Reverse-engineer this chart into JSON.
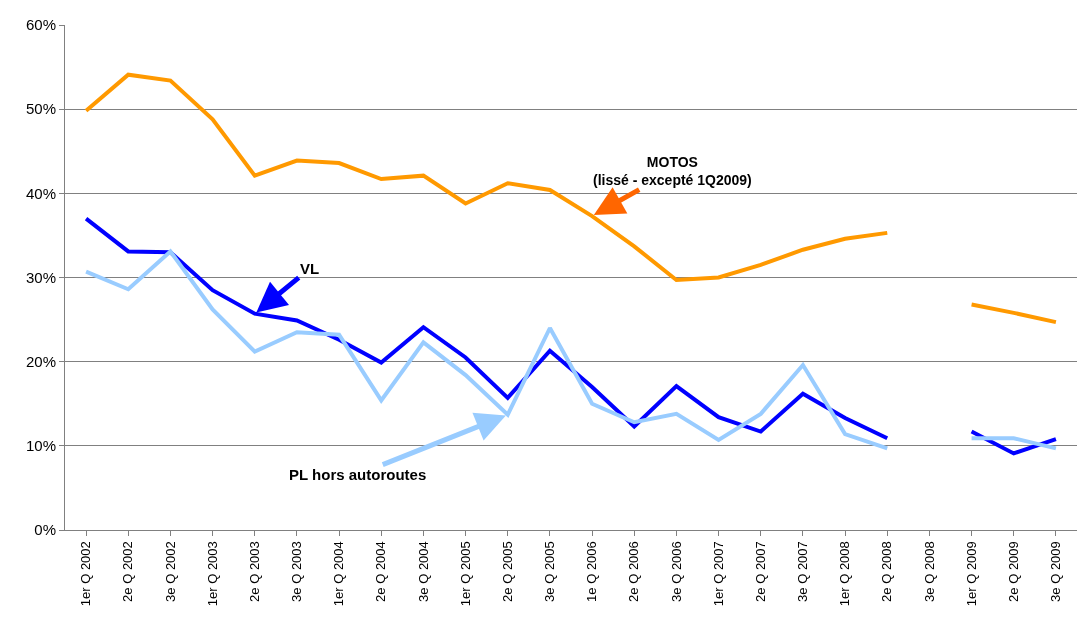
{
  "chart_data": {
    "type": "line",
    "categories": [
      "1er Q 2002",
      "2e Q 2002",
      "3e Q 2002",
      "1er Q 2003",
      "2e Q 2003",
      "3e Q 2003",
      "1er Q 2004",
      "2e Q 2004",
      "3e Q 2004",
      "1er Q 2005",
      "2e Q 2005",
      "3e Q 2005",
      "1e Q 2006",
      "2e Q 2006",
      "3e Q 2006",
      "1er Q 2007",
      "2e Q 2007",
      "3e Q 2007",
      "1er Q 2008",
      "2e Q 2008",
      "3e Q 2008",
      "1er Q 2009",
      "2e Q 2009",
      "3e Q 2009"
    ],
    "series": [
      {
        "name": "MOTOS\n(lissé - excepté 1Q2009)",
        "color": "#ff9900",
        "values": [
          49.8,
          54.1,
          53.4,
          48.8,
          42.1,
          43.9,
          43.6,
          41.7,
          42.1,
          38.8,
          41.2,
          40.4,
          37.3,
          33.7,
          29.7,
          30.0,
          31.5,
          33.3,
          34.6,
          35.3,
          null,
          26.8,
          25.8,
          24.7
        ]
      },
      {
        "name": "VL",
        "color": "#0000ff",
        "values": [
          37.0,
          33.1,
          33.0,
          28.5,
          25.7,
          24.9,
          22.6,
          19.9,
          24.1,
          20.5,
          15.7,
          21.3,
          17.0,
          12.3,
          17.1,
          13.4,
          11.7,
          16.2,
          13.3,
          10.9,
          null,
          11.7,
          9.1,
          10.8
        ]
      },
      {
        "name": "PL hors autoroutes",
        "color": "#99ccff",
        "values": [
          30.7,
          28.6,
          33.1,
          26.2,
          21.2,
          23.5,
          23.2,
          15.4,
          22.3,
          18.4,
          13.7,
          24.0,
          15.0,
          12.8,
          13.8,
          10.7,
          13.8,
          19.6,
          11.4,
          9.7,
          null,
          10.9,
          10.9,
          9.7
        ]
      }
    ],
    "ylim": [
      0,
      60
    ],
    "yticks": [
      {
        "value": 0,
        "label": "0%"
      },
      {
        "value": 10,
        "label": "10%"
      },
      {
        "value": 20,
        "label": "20%"
      },
      {
        "value": 30,
        "label": "30%"
      },
      {
        "value": 40,
        "label": "40%"
      },
      {
        "value": 50,
        "label": "50%"
      },
      {
        "value": 60,
        "label": "60%"
      }
    ],
    "grid": "y",
    "legend": false,
    "marker": "none",
    "line_style": "solid"
  }
}
